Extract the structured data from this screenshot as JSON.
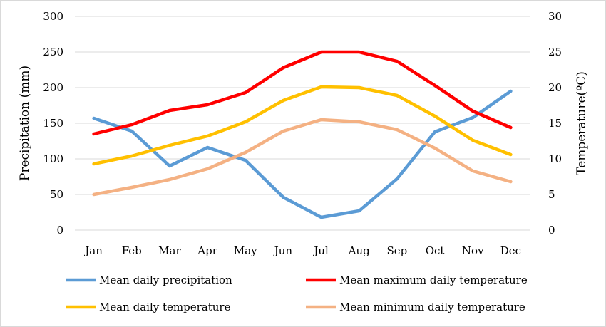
{
  "chart_data": {
    "type": "line",
    "categories": [
      "Jan",
      "Feb",
      "Mar",
      "Apr",
      "May",
      "Jun",
      "Jul",
      "Aug",
      "Sep",
      "Oct",
      "Nov",
      "Dec"
    ],
    "ylabel": "Precipitation (mm)",
    "y2label": "Temperature(ºC)",
    "ylim": [
      0,
      300
    ],
    "y2lim": [
      0,
      30
    ],
    "yticks": [
      "0",
      "50",
      "100",
      "150",
      "200",
      "250",
      "300"
    ],
    "y2ticks": [
      "0",
      "5",
      "10",
      "15",
      "20",
      "25",
      "30"
    ],
    "grid": true,
    "legend_position": "bottom",
    "series": [
      {
        "name": "Mean daily precipitation",
        "axis": "left",
        "color": "#5b9bd5",
        "values": [
          157,
          139,
          90,
          116,
          98,
          46,
          18,
          27,
          72,
          138,
          158,
          195
        ]
      },
      {
        "name": "Mean maximum daily temperature",
        "axis": "right",
        "color": "#ff0000",
        "values": [
          13.5,
          14.8,
          16.8,
          17.6,
          19.3,
          22.8,
          25.0,
          25.0,
          23.7,
          20.3,
          16.7,
          14.4
        ]
      },
      {
        "name": "Mean daily temperature",
        "axis": "right",
        "color": "#ffc000",
        "values": [
          9.3,
          10.4,
          11.9,
          13.2,
          15.2,
          18.2,
          20.1,
          20.0,
          18.9,
          16.0,
          12.6,
          10.6
        ]
      },
      {
        "name": "Mean minimum daily temperature",
        "axis": "right",
        "color": "#f4b183",
        "values": [
          5.0,
          6.0,
          7.1,
          8.6,
          10.9,
          13.9,
          15.5,
          15.2,
          14.1,
          11.5,
          8.3,
          6.8
        ]
      }
    ]
  }
}
